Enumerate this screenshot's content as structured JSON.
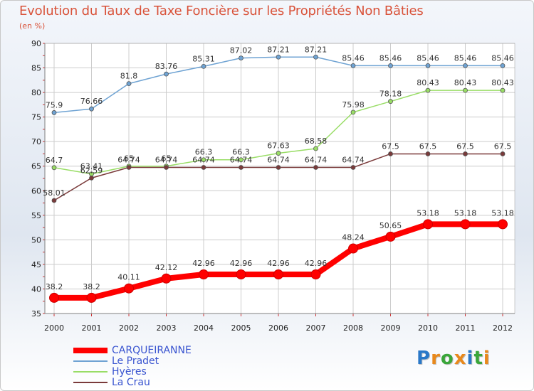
{
  "chart_data": {
    "type": "line",
    "title": "Evolution du Taux de Taxe Foncière sur les Propriétés Non Bâties",
    "ylabel": "(en %)",
    "xlabel": "",
    "categories": [
      "2000",
      "2001",
      "2002",
      "2003",
      "2004",
      "2005",
      "2006",
      "2007",
      "2008",
      "2009",
      "2010",
      "2011",
      "2012"
    ],
    "ylim": [
      35,
      90
    ],
    "yticks": [
      35,
      40,
      45,
      50,
      55,
      60,
      65,
      70,
      75,
      80,
      85,
      90
    ],
    "grid": true,
    "legend": "bottom-left",
    "series": [
      {
        "name": "CARQUEIRANNE",
        "color": "#ff0000",
        "values": [
          38.2,
          38.2,
          40.11,
          42.12,
          42.96,
          42.96,
          42.96,
          42.96,
          48.24,
          50.65,
          53.18,
          53.18,
          53.18
        ],
        "labels": [
          "38.2",
          "38.2",
          "40.11",
          "42.12",
          "42.96",
          "42.96",
          "42.96",
          "42.96",
          "48.24",
          "50.65",
          "53.18",
          "53.18",
          "53.18"
        ]
      },
      {
        "name": "Le Pradet",
        "color": "#6fa3d3",
        "values": [
          75.9,
          76.66,
          81.8,
          83.76,
          85.31,
          87.02,
          87.21,
          87.21,
          85.46,
          85.46,
          85.46,
          85.46,
          85.46
        ],
        "labels": [
          "75.9",
          "76.66",
          "81.8",
          "83.76",
          "85.31",
          "87.02",
          "87.21",
          "87.21",
          "85.46",
          "85.46",
          "85.46",
          "85.46",
          "85.46"
        ]
      },
      {
        "name": "Hyères",
        "color": "#99dd66",
        "values": [
          64.7,
          63.41,
          65,
          65,
          66.3,
          66.3,
          67.63,
          68.58,
          75.98,
          78.18,
          80.43,
          80.43,
          80.43
        ],
        "labels": [
          "64.7",
          "63.41",
          "65",
          "65",
          "66.3",
          "66.3",
          "67.63",
          "68.58",
          "75.98",
          "78.18",
          "80.43",
          "80.43",
          "80.43"
        ]
      },
      {
        "name": "La Crau",
        "color": "#7a3a3a",
        "values": [
          58.01,
          62.59,
          64.74,
          64.74,
          64.74,
          64.74,
          64.74,
          64.74,
          64.74,
          67.5,
          67.5,
          67.5,
          67.5
        ],
        "labels": [
          "58.01",
          "62.59",
          "64.74",
          "64.74",
          "64.74",
          "64.74",
          "64.74",
          "64.74",
          "64.74",
          "67.5",
          "67.5",
          "67.5",
          "67.5"
        ]
      }
    ]
  },
  "branding": {
    "logo_letters": [
      "P",
      "r",
      "o",
      "x",
      "i",
      "t",
      "i"
    ],
    "logo_colors": [
      "#2a78c8",
      "#e8891c",
      "#3aa63a",
      "#e8891c",
      "#2a78c8",
      "#3aa63a",
      "#e8891c"
    ]
  }
}
